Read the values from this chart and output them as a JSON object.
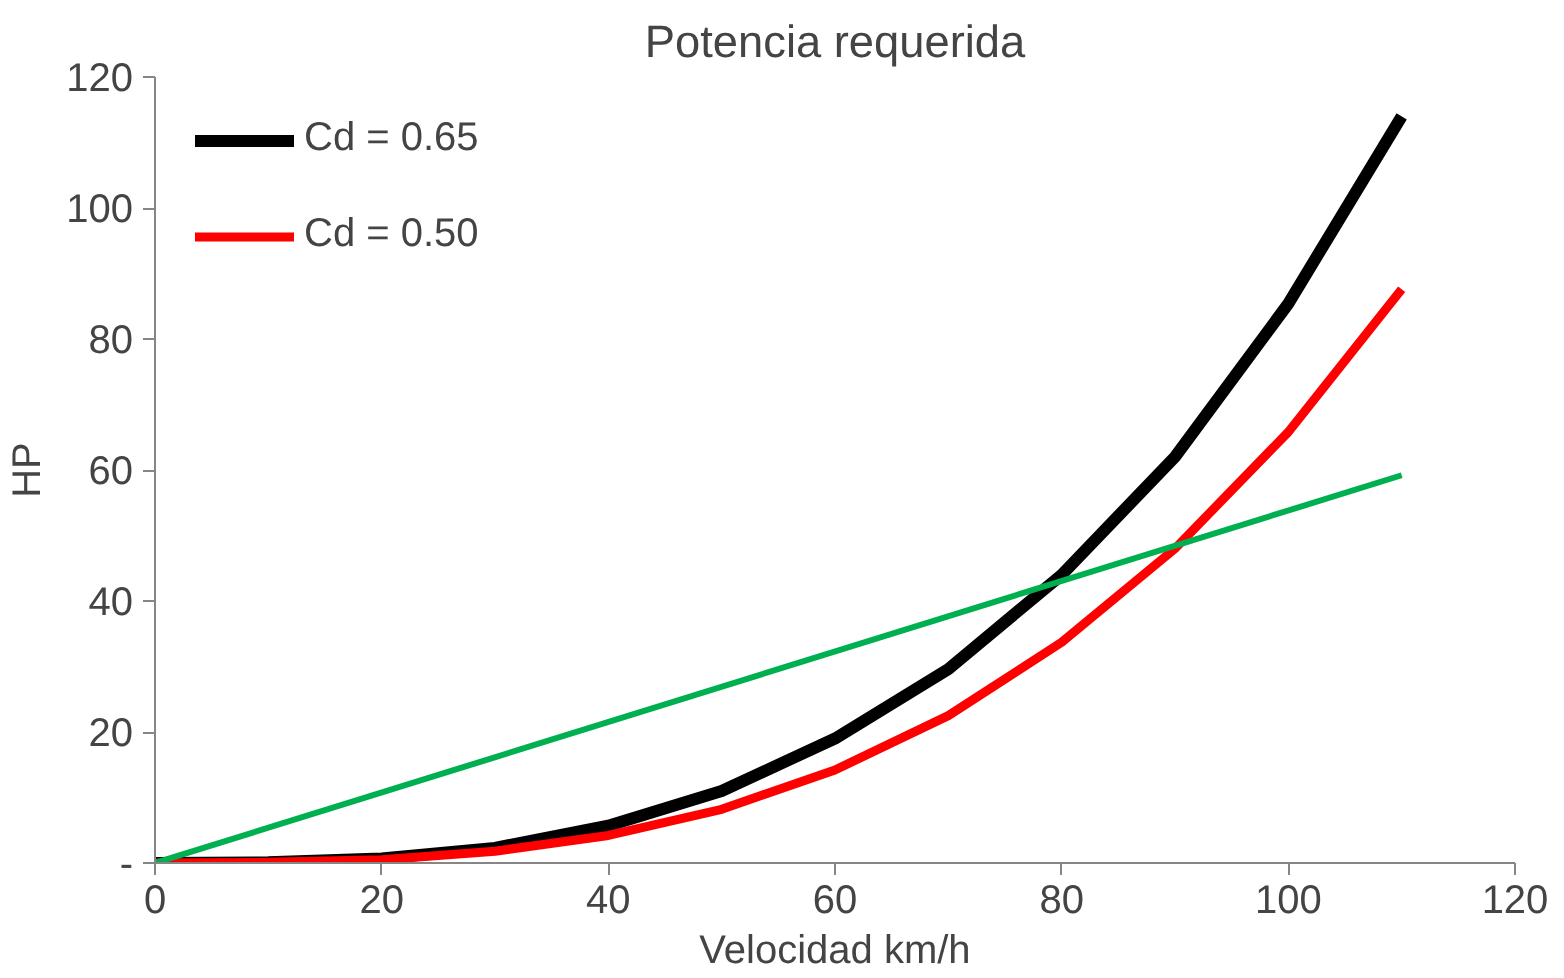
{
  "chart_data": {
    "type": "line",
    "title": "Potencia requerida",
    "xlabel": "Velocidad km/h",
    "ylabel": "HP",
    "xlim": [
      0,
      120
    ],
    "xticks": [
      0,
      20,
      40,
      60,
      80,
      100,
      120
    ],
    "ylim": [
      0,
      120
    ],
    "yticks": [
      {
        "value": 0,
        "label": "-"
      },
      20,
      40,
      60,
      80,
      100,
      120
    ],
    "grid": false,
    "legend": "top left",
    "marker": "none",
    "line_style": "solid",
    "series": [
      {
        "name": "Cd = 0.65",
        "color": "#000000",
        "x": [
          0,
          10,
          20,
          30,
          40,
          50,
          60,
          70,
          80,
          90,
          100,
          110
        ],
        "values": [
          0,
          0.1,
          0.7,
          2.3,
          5.7,
          11,
          19,
          29.6,
          44,
          62,
          85.4,
          114
        ]
      },
      {
        "name": "Cd = 0.50",
        "color": "#ff0000",
        "x": [
          0,
          10,
          20,
          30,
          40,
          50,
          60,
          70,
          80,
          90,
          100,
          110
        ],
        "values": [
          0,
          0.1,
          0.5,
          1.8,
          4.2,
          8.2,
          14.2,
          22.5,
          33.7,
          48,
          65.8,
          87.6
        ]
      },
      {
        "color": "#00b050",
        "x": [
          0,
          110
        ],
        "values": [
          0,
          59.2
        ]
      }
    ]
  }
}
